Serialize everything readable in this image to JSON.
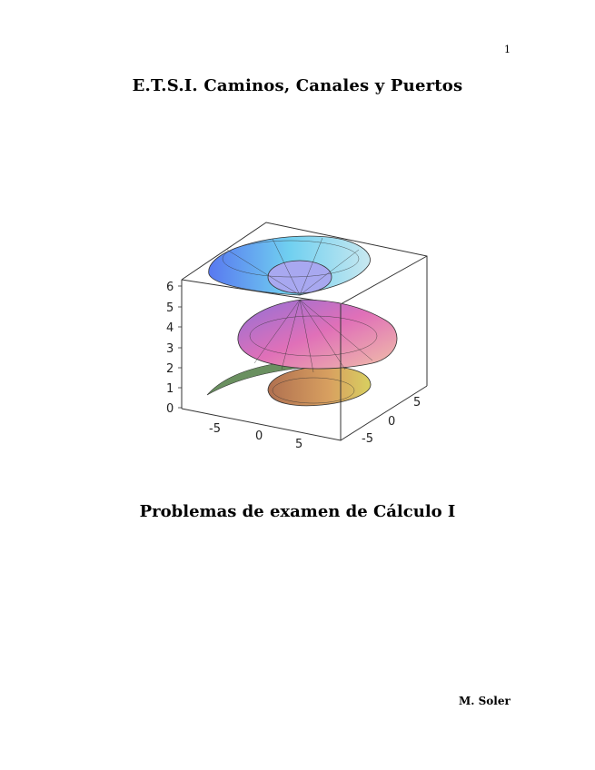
{
  "page_number": "1",
  "title": "E.T.S.I. Caminos, Canales y Puertos",
  "figure": {
    "description_type": "3D surface plot",
    "z_ticks": [
      "0",
      "1",
      "2",
      "3",
      "4",
      "5",
      "6"
    ],
    "x_ticks": [
      "-5",
      "0",
      "5"
    ],
    "y_ticks": [
      "-5",
      "0",
      "5"
    ],
    "colors": {
      "top_surface": "#6fc8f0",
      "middle_surface": "#d070c8",
      "bottom_surface": "#c89060",
      "sheet": "#6a9060"
    }
  },
  "subtitle": "Problemas de examen de Cálculo I",
  "author": "M. Soler"
}
